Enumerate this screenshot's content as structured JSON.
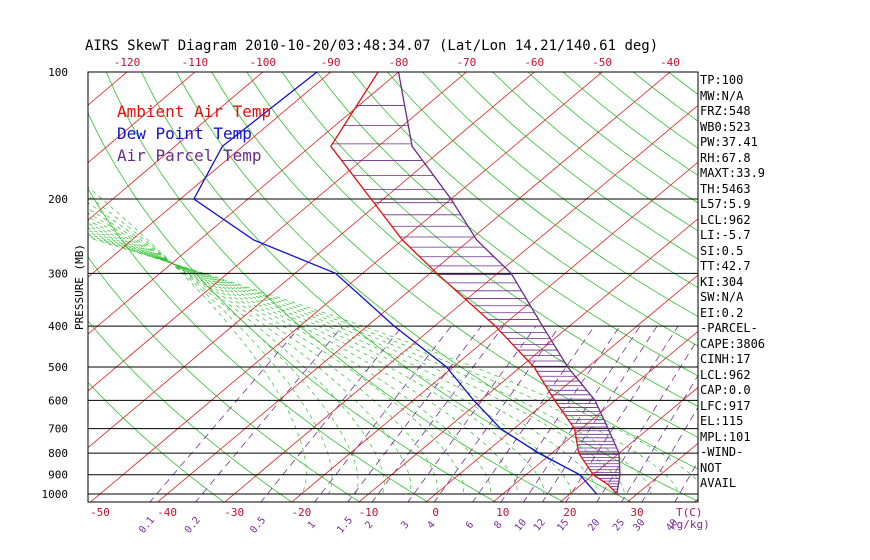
{
  "chart_data": {
    "type": "skewt",
    "title": "AIRS SkewT Diagram 2010-10-20/03:48:34.07 (Lat/Lon 14.21/140.61 deg)",
    "ylabel": "PRESSURE (MB)",
    "xlabel_right": "T(C)",
    "mixing_ratio_unit": "(g/kg)",
    "pressure_levels": [
      100,
      200,
      300,
      400,
      500,
      600,
      700,
      800,
      900,
      1000
    ],
    "top_temp_ticks": [
      -120,
      -110,
      -100,
      -90,
      -80,
      -70,
      -60,
      -50,
      -40
    ],
    "bottom_temp_ticks": [
      -50,
      -40,
      -30,
      -20,
      -10,
      0,
      10,
      20,
      30
    ],
    "mixing_ratios": [
      "0.1",
      "0.2",
      "0.5",
      "1",
      "1.5",
      "2",
      "3",
      "4",
      "6",
      "8",
      "10",
      "12",
      "15",
      "20",
      "25",
      "30",
      "40"
    ],
    "legend": [
      {
        "label": "Ambient Air Temp",
        "color": "#e01010"
      },
      {
        "label": "Dew Point Temp",
        "color": "#1010d0"
      },
      {
        "label": "Air Parcel Temp",
        "color": "#6a2a8a"
      }
    ],
    "series": [
      {
        "name": "Ambient Air Temp",
        "color": "#e01010",
        "points": [
          [
            100,
            -83
          ],
          [
            150,
            -77
          ],
          [
            250,
            -50
          ],
          [
            300,
            -39
          ],
          [
            400,
            -21
          ],
          [
            500,
            -8
          ],
          [
            600,
            1
          ],
          [
            700,
            9
          ],
          [
            800,
            14
          ],
          [
            900,
            20
          ],
          [
            950,
            24
          ],
          [
            1000,
            27
          ]
        ]
      },
      {
        "name": "Dew Point Temp",
        "color": "#1010d0",
        "points": [
          [
            100,
            -92
          ],
          [
            150,
            -93
          ],
          [
            200,
            -88
          ],
          [
            250,
            -72
          ],
          [
            300,
            -54
          ],
          [
            400,
            -36
          ],
          [
            500,
            -21
          ],
          [
            600,
            -11
          ],
          [
            700,
            -2
          ],
          [
            800,
            8
          ],
          [
            900,
            18
          ],
          [
            1000,
            24
          ]
        ]
      },
      {
        "name": "Air Parcel Temp",
        "color": "#6a2a8a",
        "points": [
          [
            100,
            -80
          ],
          [
            150,
            -65
          ],
          [
            200,
            -50
          ],
          [
            250,
            -39
          ],
          [
            300,
            -28
          ],
          [
            400,
            -14
          ],
          [
            500,
            -3
          ],
          [
            600,
            7
          ],
          [
            700,
            14
          ],
          [
            800,
            20
          ],
          [
            900,
            24
          ],
          [
            1000,
            27
          ]
        ]
      }
    ]
  },
  "stats": [
    "TP:100",
    "MW:N/A",
    "FRZ:548",
    "WB0:523",
    "PW:37.41",
    "RH:67.8",
    "MAXT:33.9",
    "TH:5463",
    "L57:5.9",
    "LCL:962",
    "LI:-5.7",
    "SI:0.5",
    "TT:42.7",
    "KI:304",
    "SW:N/A",
    "EI:0.2",
    "-PARCEL-",
    "CAPE:3806",
    "CINH:17",
    "LCL:962",
    "CAP:0.0",
    "LFC:917",
    "EL:115",
    "MPL:101",
    "-WIND-",
    "NOT",
    "AVAIL"
  ]
}
